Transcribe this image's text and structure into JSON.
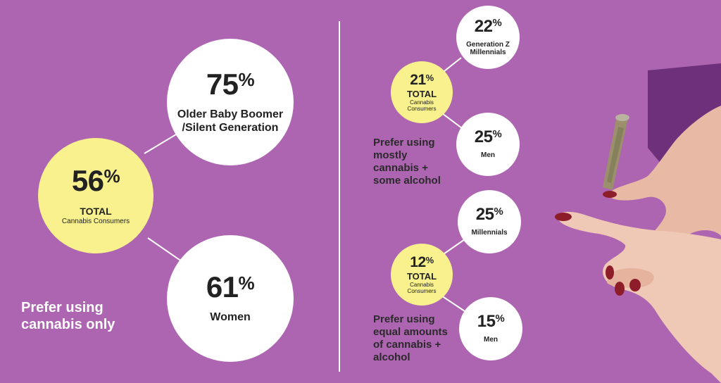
{
  "left": {
    "total": {
      "percent": "56",
      "symbol": "%",
      "label": "TOTAL",
      "sublabel": "Cannabis Consumers"
    },
    "top": {
      "percent": "75",
      "symbol": "%",
      "label_line1": "Older Baby Boomer",
      "label_line2": "/Silent Generation"
    },
    "bottom": {
      "percent": "61",
      "symbol": "%",
      "label": "Women"
    },
    "caption_line1": "Prefer using",
    "caption_line2": "cannabis only"
  },
  "right_top": {
    "total": {
      "percent": "21",
      "symbol": "%",
      "label": "TOTAL",
      "sublabel_line1": "Cannabis",
      "sublabel_line2": "Consumers"
    },
    "top": {
      "percent": "22",
      "symbol": "%",
      "label_line1": "Generation Z",
      "label_line2": "Millennials"
    },
    "bottom": {
      "percent": "25",
      "symbol": "%",
      "label": "Men"
    },
    "caption_lines": [
      "Prefer using",
      "mostly",
      "cannabis +",
      "some alcohol"
    ]
  },
  "right_bottom": {
    "total": {
      "percent": "12",
      "symbol": "%",
      "label": "TOTAL",
      "sublabel_line1": "Cannabis",
      "sublabel_line2": "Consumers"
    },
    "top": {
      "percent": "25",
      "symbol": "%",
      "label": "Millennials"
    },
    "bottom": {
      "percent": "15",
      "symbol": "%",
      "label": "Men"
    },
    "caption_lines": [
      "Prefer using",
      "equal amounts",
      "of cannabis +",
      "alcohol"
    ]
  },
  "colors": {
    "background": "#AE65B1",
    "highlight": "#F8F18E",
    "circle": "#FFFFFF",
    "text": "#222222"
  },
  "image": {
    "icon": "hand-holding-joint-photo"
  }
}
